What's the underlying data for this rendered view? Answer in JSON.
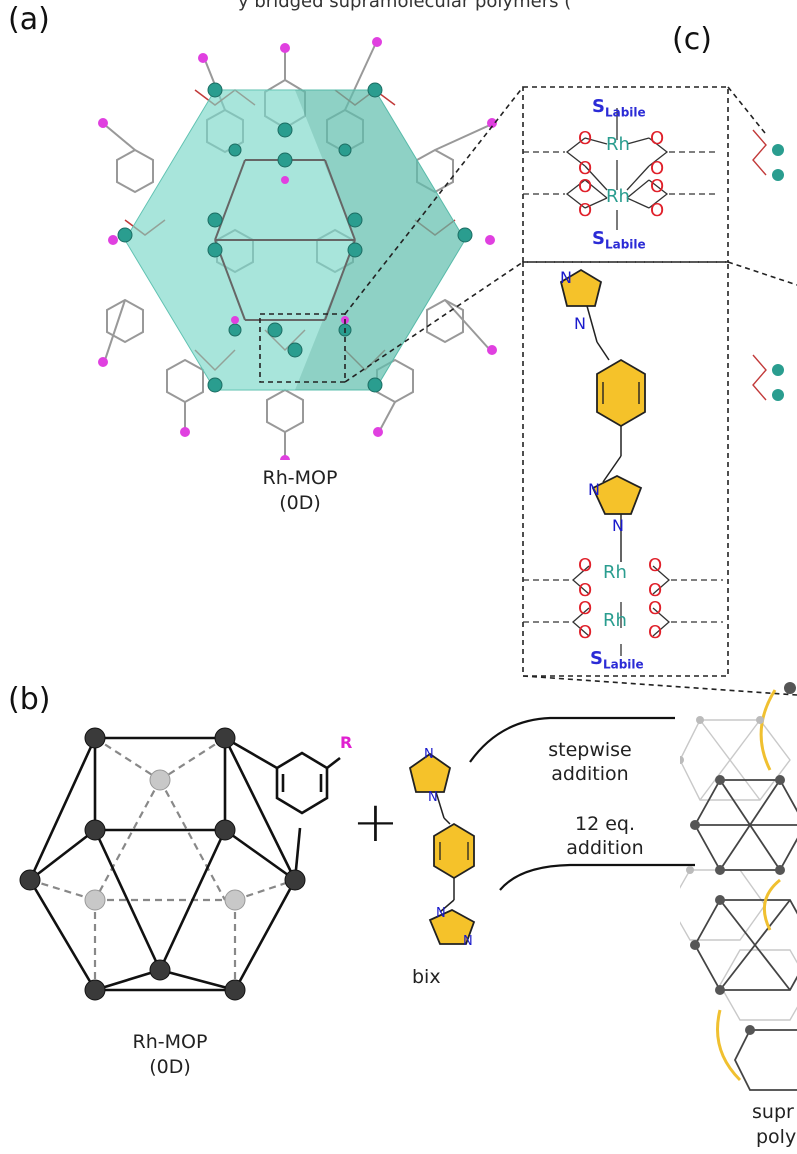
{
  "header_partial": "y bridged supramolecular polymers (",
  "panels": {
    "a": {
      "label": "(a)",
      "caption_line1": "Rh-MOP",
      "caption_line2": "(0D)"
    },
    "b": {
      "label": "(b)",
      "caption_line1": "Rh-MOP",
      "caption_line2": "(0D)",
      "substituent": "R",
      "plus": "+",
      "linker_label": "bix"
    },
    "c": {
      "label": "(c)"
    }
  },
  "paddlewheel": {
    "rh": "Rh",
    "o": "O",
    "n": "N",
    "s_main": "S",
    "s_sub": "Labile"
  },
  "arrows": {
    "stepwise_line1": "stepwise",
    "stepwise_line2": "addition",
    "eq_line1": "12 eq.",
    "eq_line2": "addition"
  },
  "product_partial": {
    "line1": "supr",
    "line2": "poly"
  },
  "colors": {
    "rh": "#2a9d8f",
    "oxygen": "#e0202a",
    "nitrogen": "#1a1acc",
    "labile": "#2b2bd6",
    "ring": "#f5c22a",
    "cage_fill": "#6fd3c2",
    "magenta": "#e040e0",
    "r_group": "#e020d0"
  }
}
